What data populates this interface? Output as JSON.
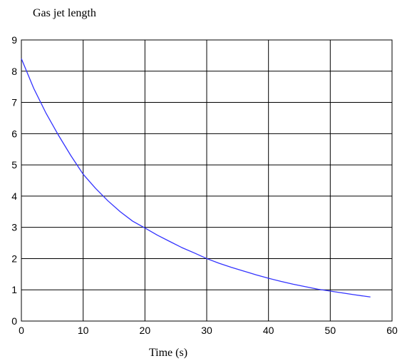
{
  "chart_data": {
    "type": "line",
    "title": "Gas jet length",
    "xlabel": "Time (s)",
    "ylabel": "",
    "xlim": [
      0,
      60
    ],
    "ylim": [
      0,
      9
    ],
    "xticks": [
      0,
      10,
      20,
      30,
      40,
      50,
      60
    ],
    "yticks": [
      0,
      1,
      2,
      3,
      4,
      5,
      6,
      7,
      8,
      9
    ],
    "grid": true,
    "series": [
      {
        "color": "#3333ff",
        "x": [
          0,
          2,
          4,
          6,
          8,
          10,
          12,
          14,
          16,
          18,
          20,
          22,
          24,
          26,
          28,
          30,
          32,
          34,
          36,
          38,
          40,
          42,
          44,
          46,
          48,
          50,
          52,
          54,
          56.5
        ],
        "y": [
          8.4,
          7.45,
          6.65,
          5.95,
          5.3,
          4.7,
          4.25,
          3.85,
          3.5,
          3.2,
          2.98,
          2.75,
          2.55,
          2.35,
          2.18,
          2.0,
          1.85,
          1.72,
          1.6,
          1.48,
          1.37,
          1.27,
          1.18,
          1.1,
          1.02,
          0.96,
          0.9,
          0.84,
          0.77
        ]
      }
    ]
  }
}
